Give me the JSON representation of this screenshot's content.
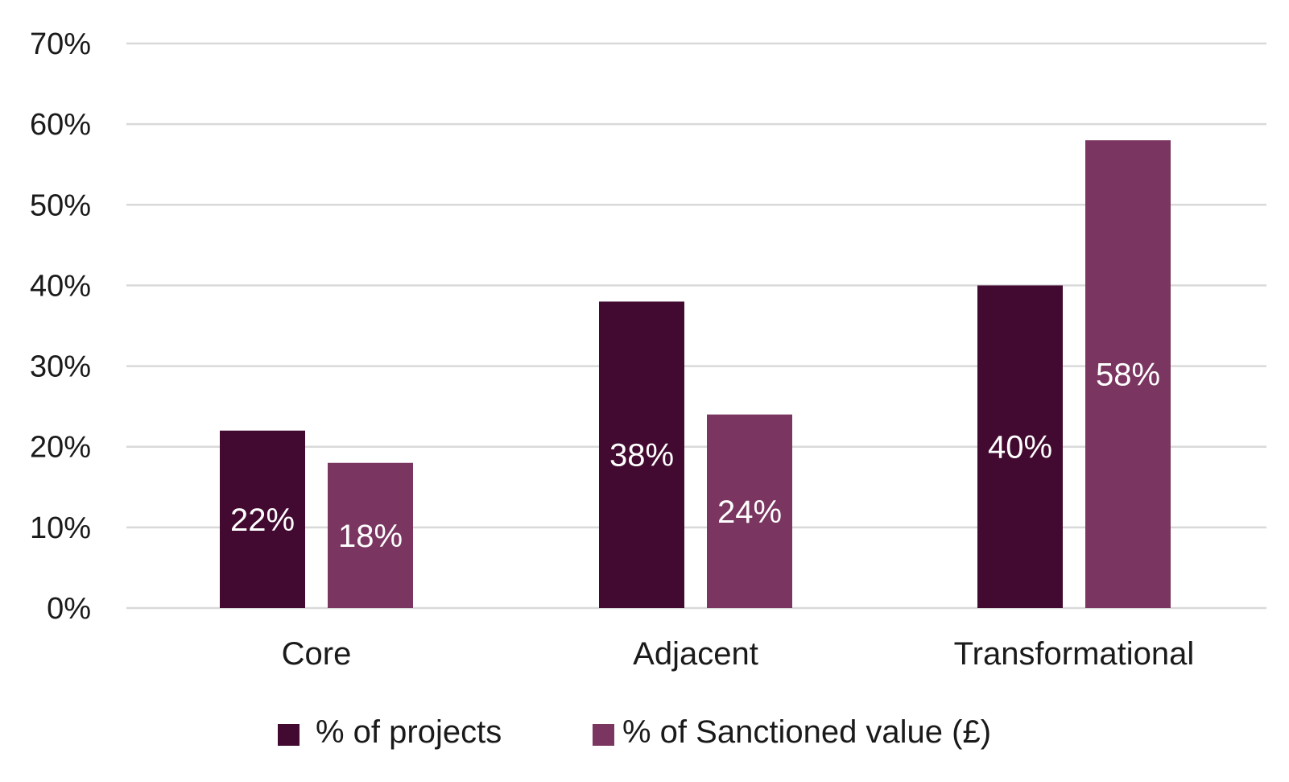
{
  "chart_data": {
    "type": "bar",
    "categories": [
      "Core",
      "Adjacent",
      "Transformational"
    ],
    "series": [
      {
        "name": "% of projects",
        "values": [
          22,
          38,
          40
        ],
        "labels": [
          "22%",
          "38%",
          "40%"
        ],
        "color": "#420a30"
      },
      {
        "name": "% of Sanctioned value (£)",
        "values": [
          18,
          24,
          58
        ],
        "labels": [
          "18%",
          "24%",
          "58%"
        ],
        "color": "#7a3660"
      }
    ],
    "y_ticks": [
      "0%",
      "10%",
      "20%",
      "30%",
      "40%",
      "50%",
      "60%",
      "70%"
    ],
    "ylim": [
      0,
      70
    ],
    "grid": true,
    "legend_position": "bottom"
  }
}
